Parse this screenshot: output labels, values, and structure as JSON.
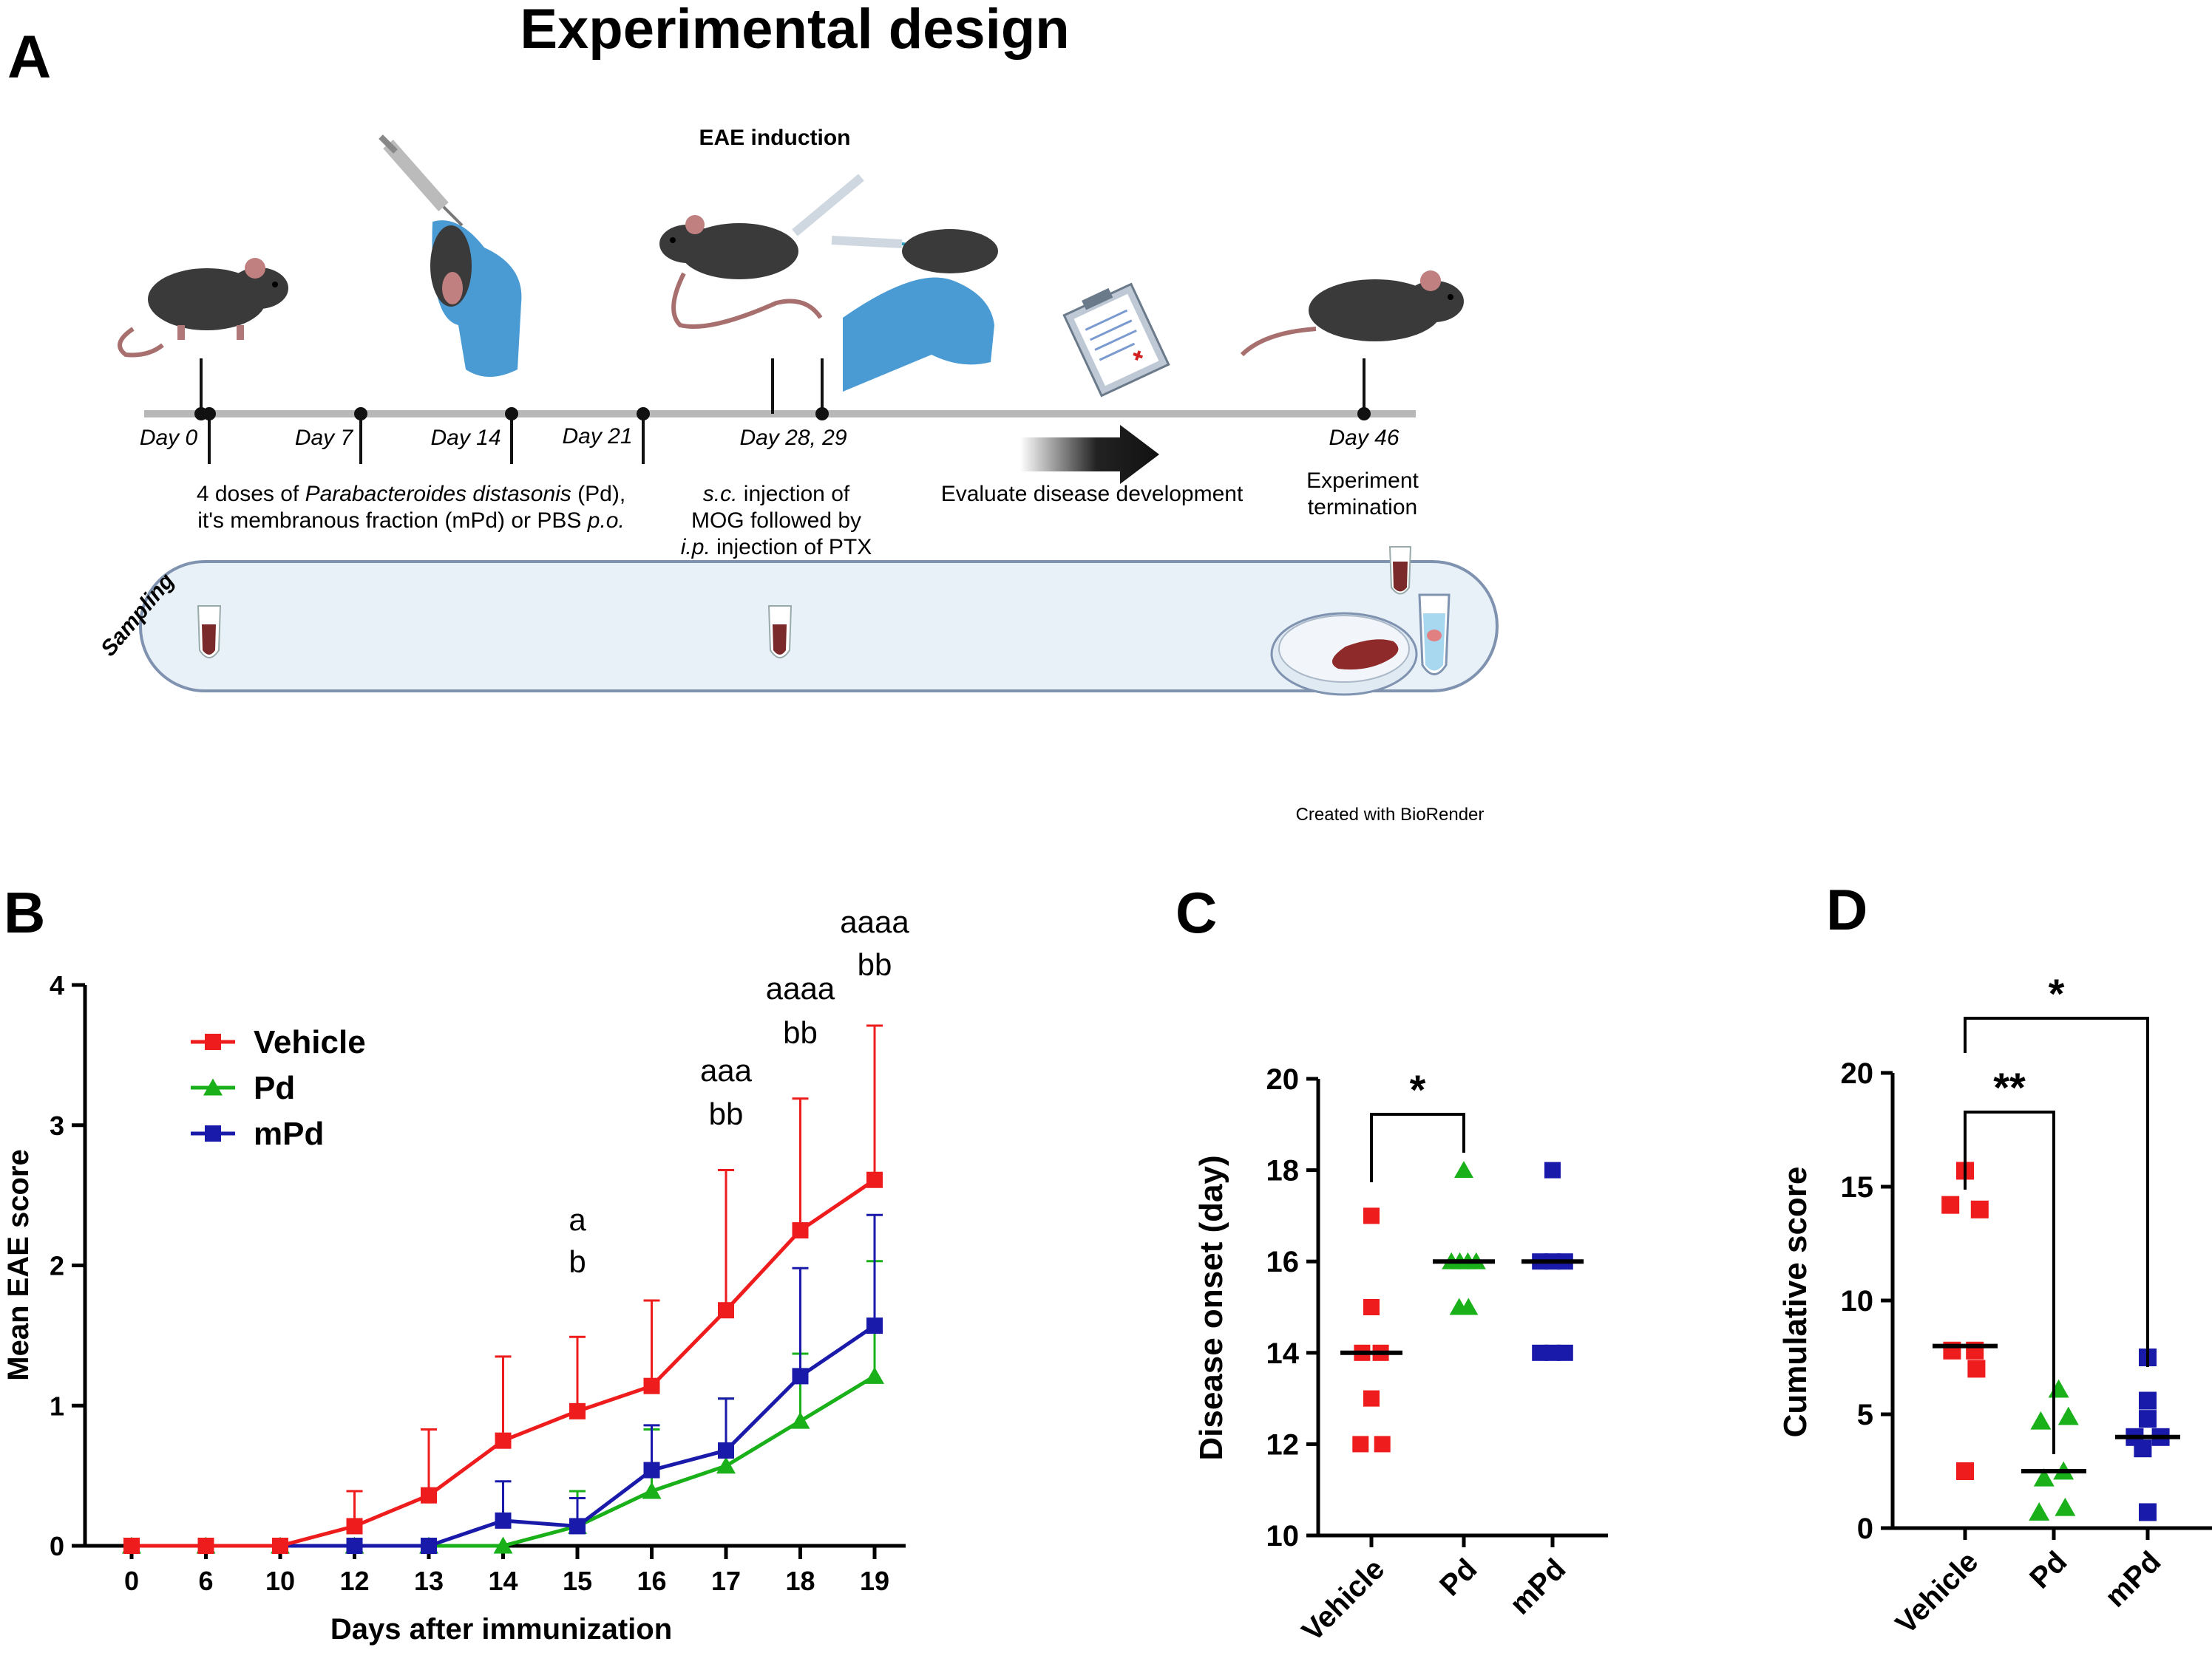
{
  "colors": {
    "vehicle": "#ee1c1c",
    "pd": "#19b019",
    "mpd": "#1a1aaa",
    "axis": "#000000",
    "median": "#000000",
    "timeline": "#b8b8b8",
    "tube": "#e8f0f8",
    "tube_stroke": "#7f93b0"
  },
  "panelA": {
    "letter": "A",
    "title": "Experimental design",
    "induction_label": "EAE induction",
    "days": [
      "Day 0",
      "Day 7",
      "Day 14",
      "Day 21",
      "Day 28, 29",
      "Day 46"
    ],
    "desc_treat_1a": "4 doses of ",
    "desc_treat_1b": "Parabacteroides distasonis",
    "desc_treat_1c": " (Pd),",
    "desc_treat_2a": "it's membranous fraction (mPd) or PBS ",
    "desc_treat_2b": "p.o.",
    "desc_sc_a": "s.c.",
    "desc_sc_b": " injection of",
    "desc_mog": "MOG followed by",
    "desc_ip_a": "i.p.",
    "desc_ip_b": " injection of PTX",
    "evaluate": "Evaluate disease development",
    "term_1": "Experiment",
    "term_2": "termination",
    "sampling": "Sampling",
    "credit": "Created with BioRender",
    "icons": [
      "mouse-icon",
      "syringe-icon",
      "gloved-hand-icon",
      "clipboard-icon",
      "arrow-icon",
      "sample-tube-icon",
      "petri-dish-icon",
      "spleen-icon"
    ]
  },
  "chart_data": [
    {
      "panel": "B",
      "type": "line",
      "xlabel": "Days after immunization",
      "ylabel": "Mean EAE score",
      "categories": [
        "0",
        "6",
        "10",
        "12",
        "13",
        "14",
        "15",
        "16",
        "17",
        "18",
        "19"
      ],
      "ylim": [
        0,
        4
      ],
      "yticks": [
        "0",
        "1",
        "2",
        "3",
        "4"
      ],
      "legend": "top-left",
      "series": [
        {
          "name": "Vehicle",
          "marker": "square",
          "color": "#ee1c1c",
          "values": [
            0,
            0,
            0,
            0.14,
            0.36,
            0.75,
            0.96,
            1.14,
            1.68,
            2.25,
            2.61
          ],
          "err": [
            0,
            0,
            0,
            0.25,
            0.47,
            0.6,
            0.53,
            0.61,
            1.0,
            0.94,
            1.1
          ]
        },
        {
          "name": "Pd",
          "marker": "triangle",
          "color": "#19b019",
          "values": [
            0,
            0,
            0,
            0,
            0,
            0,
            0.14,
            0.39,
            0.57,
            0.89,
            1.21
          ],
          "err": [
            0,
            0,
            0,
            0,
            0,
            0,
            0.25,
            0.44,
            0.48,
            0.48,
            0.82
          ]
        },
        {
          "name": "mPd",
          "marker": "square",
          "color": "#1a1aaa",
          "values": [
            0,
            0,
            0,
            0,
            0,
            0.18,
            0.14,
            0.54,
            0.68,
            1.21,
            1.57
          ],
          "err": [
            0,
            0,
            0,
            0,
            0,
            0.28,
            0.2,
            0.32,
            0.37,
            0.77,
            0.79
          ]
        }
      ],
      "annotations": [
        {
          "x": "15",
          "lines": [
            "a",
            "b"
          ]
        },
        {
          "x": "17",
          "lines": [
            "aaa",
            "bb"
          ]
        },
        {
          "x": "18",
          "lines": [
            "aaaa",
            "bb"
          ]
        },
        {
          "x": "19",
          "lines": [
            "aaaa",
            "bb"
          ]
        }
      ]
    },
    {
      "panel": "C",
      "type": "scatter",
      "ylabel": "Disease onset (day)",
      "categories": [
        "Vehicle",
        "Pd",
        "mPd"
      ],
      "ylim": [
        10,
        20
      ],
      "yticks": [
        "10",
        "12",
        "14",
        "16",
        "18",
        "20"
      ],
      "groups": [
        {
          "name": "Vehicle",
          "marker": "square",
          "color": "#ee1c1c",
          "median": 14,
          "points": [
            [
              -0.35,
              12
            ],
            [
              0.35,
              12
            ],
            [
              0,
              13
            ],
            [
              -0.3,
              14
            ],
            [
              0.3,
              14
            ],
            [
              0,
              15
            ],
            [
              0,
              17
            ]
          ]
        },
        {
          "name": "Pd",
          "marker": "triangle",
          "color": "#19b019",
          "median": 16,
          "points": [
            [
              -0.15,
              15
            ],
            [
              0.15,
              15
            ],
            [
              -0.4,
              16
            ],
            [
              -0.13,
              16
            ],
            [
              0.13,
              16
            ],
            [
              0.4,
              16
            ],
            [
              0,
              18
            ]
          ]
        },
        {
          "name": "mPd",
          "marker": "square",
          "color": "#1a1aaa",
          "median": 16,
          "points": [
            [
              -0.4,
              14
            ],
            [
              0,
              14
            ],
            [
              0.4,
              14
            ],
            [
              -0.4,
              16
            ],
            [
              0,
              16
            ],
            [
              0.4,
              16
            ],
            [
              0,
              18
            ]
          ]
        }
      ],
      "significance": [
        {
          "from": 0,
          "to": 1,
          "label": "*"
        }
      ]
    },
    {
      "panel": "D",
      "type": "scatter",
      "ylabel": "Cumulative score",
      "categories": [
        "Vehicle",
        "Pd",
        "mPd"
      ],
      "ylim": [
        0,
        20
      ],
      "yticks": [
        "0",
        "5",
        "10",
        "15",
        "20"
      ],
      "groups": [
        {
          "name": "Vehicle",
          "marker": "square",
          "color": "#ee1c1c",
          "median": 8,
          "points": [
            [
              0,
              15.7
            ],
            [
              -0.45,
              14.2
            ],
            [
              0.45,
              14
            ],
            [
              -0.4,
              7.8
            ],
            [
              0.3,
              7.8
            ],
            [
              0.35,
              7
            ],
            [
              0,
              2.5
            ]
          ]
        },
        {
          "name": "Pd",
          "marker": "triangle",
          "color": "#19b019",
          "median": 2.5,
          "points": [
            [
              0.15,
              6.1
            ],
            [
              -0.4,
              4.7
            ],
            [
              0.45,
              4.9
            ],
            [
              -0.3,
              2.2
            ],
            [
              0.3,
              2.5
            ],
            [
              -0.45,
              0.7
            ],
            [
              0.35,
              0.9
            ]
          ]
        },
        {
          "name": "mPd",
          "marker": "square",
          "color": "#1a1aaa",
          "median": 4,
          "points": [
            [
              0,
              7.5
            ],
            [
              0,
              5.6
            ],
            [
              -0.4,
              4
            ],
            [
              0.4,
              4
            ],
            [
              0,
              4.8
            ],
            [
              -0.15,
              3.5
            ],
            [
              0,
              0.7
            ]
          ]
        }
      ],
      "significance": [
        {
          "from": 0,
          "to": 1,
          "label": "**"
        },
        {
          "from": 0,
          "to": 2,
          "label": "*"
        }
      ]
    }
  ]
}
